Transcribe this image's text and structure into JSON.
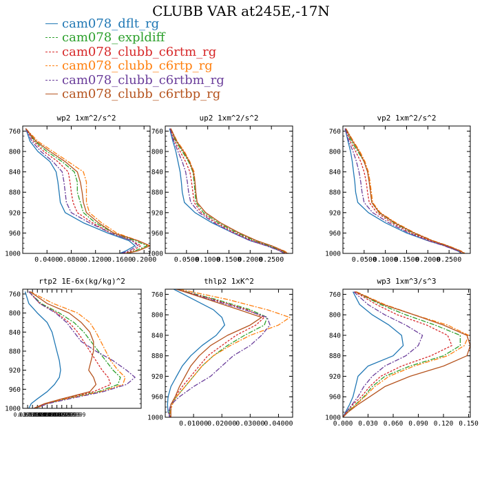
{
  "figure": {
    "title": "CLUBB VAR at245E,-17N"
  },
  "legend": [
    {
      "name": "cam078_dflt_rg",
      "color": "#1f77b4",
      "dash": ""
    },
    {
      "name": "cam078_expldiff",
      "color": "#2ca02c",
      "dash": "7 2 2 2"
    },
    {
      "name": "cam078_clubb_c6rtm_rg",
      "color": "#d62728",
      "dash": "3 2"
    },
    {
      "name": "cam078_clubb_c6rtp_rg",
      "color": "#ff7f0e",
      "dash": "7 2 2 2"
    },
    {
      "name": "cam078_clubb_c6rtbm_rg",
      "color": "#6a3d9a",
      "dash": "7 2 2 2"
    },
    {
      "name": "cam078_clubb_c6rtbp_rg",
      "color": "#b5531e",
      "dash": ""
    }
  ],
  "chart_data": [
    {
      "type": "line",
      "title": "wp2   1xm^2/s^2",
      "xlim": [
        0.0,
        0.21
      ],
      "ylim": [
        1000,
        750
      ],
      "xticks": [
        "0.0400",
        "0.0800",
        "0.1200",
        "0.1600",
        "0.2000"
      ],
      "yticks": [
        "760",
        "800",
        "840",
        "880",
        "920",
        "960",
        "1000"
      ],
      "y": [
        755,
        780,
        800,
        820,
        840,
        860,
        880,
        900,
        920,
        940,
        960,
        975,
        985,
        995,
        1000
      ],
      "series": [
        {
          "name": "cam078_dflt_rg",
          "x": [
            0.005,
            0.012,
            0.025,
            0.045,
            0.055,
            0.058,
            0.06,
            0.062,
            0.07,
            0.1,
            0.14,
            0.175,
            0.185,
            0.17,
            0.16
          ]
        },
        {
          "name": "cam078_expldiff",
          "x": [
            0.005,
            0.02,
            0.04,
            0.065,
            0.085,
            0.09,
            0.09,
            0.095,
            0.1,
            0.12,
            0.15,
            0.185,
            0.205,
            0.185,
            0.17
          ]
        },
        {
          "name": "cam078_clubb_c6rtm_rg",
          "x": [
            0.005,
            0.018,
            0.035,
            0.058,
            0.075,
            0.078,
            0.08,
            0.083,
            0.09,
            0.115,
            0.145,
            0.18,
            0.195,
            0.18,
            0.165
          ]
        },
        {
          "name": "cam078_clubb_c6rtp_rg",
          "x": [
            0.005,
            0.025,
            0.05,
            0.075,
            0.1,
            0.105,
            0.105,
            0.105,
            0.11,
            0.13,
            0.155,
            0.19,
            0.208,
            0.19,
            0.17
          ]
        },
        {
          "name": "cam078_clubb_c6rtbm_rg",
          "x": [
            0.005,
            0.015,
            0.03,
            0.05,
            0.065,
            0.068,
            0.07,
            0.072,
            0.08,
            0.11,
            0.145,
            0.18,
            0.19,
            0.175,
            0.162
          ]
        },
        {
          "name": "cam078_clubb_c6rtbp_rg",
          "x": [
            0.005,
            0.022,
            0.045,
            0.07,
            0.09,
            0.095,
            0.098,
            0.1,
            0.105,
            0.125,
            0.15,
            0.19,
            0.21,
            0.19,
            0.172
          ]
        }
      ]
    },
    {
      "type": "line",
      "title": "up2   1xm^2/s^2",
      "xlim": [
        0.0,
        0.3
      ],
      "ylim": [
        1000,
        750
      ],
      "xticks": [
        "0.0500",
        "0.1000",
        "0.1500",
        "0.2000",
        "0.2500"
      ],
      "yticks": [
        "760",
        "800",
        "840",
        "880",
        "920",
        "960",
        "1000"
      ],
      "y": [
        755,
        780,
        800,
        820,
        840,
        860,
        880,
        900,
        920,
        940,
        960,
        975,
        985,
        995,
        1000
      ],
      "series": [
        {
          "name": "cam078_dflt_rg",
          "x": [
            0.01,
            0.018,
            0.025,
            0.03,
            0.035,
            0.038,
            0.04,
            0.045,
            0.07,
            0.11,
            0.16,
            0.2,
            0.24,
            0.27,
            0.28
          ]
        },
        {
          "name": "cam078_expldiff",
          "x": [
            0.012,
            0.025,
            0.04,
            0.055,
            0.065,
            0.068,
            0.07,
            0.072,
            0.09,
            0.125,
            0.17,
            0.21,
            0.245,
            0.275,
            0.285
          ]
        },
        {
          "name": "cam078_clubb_c6rtm_rg",
          "x": [
            0.012,
            0.022,
            0.035,
            0.048,
            0.058,
            0.062,
            0.065,
            0.068,
            0.085,
            0.12,
            0.165,
            0.205,
            0.24,
            0.272,
            0.283
          ]
        },
        {
          "name": "cam078_clubb_c6rtp_rg",
          "x": [
            0.013,
            0.028,
            0.045,
            0.058,
            0.068,
            0.07,
            0.072,
            0.075,
            0.095,
            0.13,
            0.175,
            0.215,
            0.25,
            0.28,
            0.29
          ]
        },
        {
          "name": "cam078_clubb_c6rtbm_rg",
          "x": [
            0.011,
            0.02,
            0.03,
            0.04,
            0.048,
            0.052,
            0.055,
            0.06,
            0.08,
            0.115,
            0.16,
            0.2,
            0.238,
            0.27,
            0.28
          ]
        },
        {
          "name": "cam078_clubb_c6rtbp_rg",
          "x": [
            0.013,
            0.027,
            0.043,
            0.057,
            0.066,
            0.07,
            0.072,
            0.075,
            0.095,
            0.13,
            0.175,
            0.215,
            0.25,
            0.278,
            0.288
          ]
        }
      ]
    },
    {
      "type": "line",
      "title": "vp2   1xm^2/s^2",
      "xlim": [
        0.0,
        0.3
      ],
      "ylim": [
        1000,
        750
      ],
      "xticks": [
        "0.0500",
        "0.1000",
        "0.1500",
        "0.2000",
        "0.2500"
      ],
      "yticks": [
        "760",
        "800",
        "840",
        "880",
        "920",
        "960",
        "1000"
      ],
      "y": [
        755,
        780,
        800,
        820,
        840,
        860,
        880,
        900,
        920,
        940,
        960,
        975,
        985,
        995,
        1000
      ],
      "series": [
        {
          "name": "cam078_dflt_rg",
          "x": [
            0.005,
            0.012,
            0.018,
            0.022,
            0.025,
            0.028,
            0.03,
            0.035,
            0.06,
            0.1,
            0.15,
            0.2,
            0.24,
            0.27,
            0.28
          ]
        },
        {
          "name": "cam078_expldiff",
          "x": [
            0.006,
            0.02,
            0.035,
            0.05,
            0.058,
            0.062,
            0.065,
            0.068,
            0.085,
            0.12,
            0.165,
            0.21,
            0.245,
            0.275,
            0.285
          ]
        },
        {
          "name": "cam078_clubb_c6rtm_rg",
          "x": [
            0.006,
            0.017,
            0.03,
            0.042,
            0.05,
            0.055,
            0.058,
            0.062,
            0.08,
            0.115,
            0.16,
            0.205,
            0.24,
            0.272,
            0.282
          ]
        },
        {
          "name": "cam078_clubb_c6rtp_rg",
          "x": [
            0.007,
            0.025,
            0.04,
            0.052,
            0.06,
            0.064,
            0.067,
            0.07,
            0.088,
            0.125,
            0.17,
            0.212,
            0.248,
            0.278,
            0.288
          ]
        },
        {
          "name": "cam078_clubb_c6rtbm_rg",
          "x": [
            0.005,
            0.014,
            0.024,
            0.032,
            0.038,
            0.042,
            0.045,
            0.05,
            0.07,
            0.108,
            0.155,
            0.2,
            0.238,
            0.27,
            0.28
          ]
        },
        {
          "name": "cam078_clubb_c6rtbp_rg",
          "x": [
            0.007,
            0.023,
            0.038,
            0.05,
            0.058,
            0.062,
            0.065,
            0.068,
            0.086,
            0.122,
            0.168,
            0.21,
            0.246,
            0.276,
            0.286
          ]
        }
      ]
    },
    {
      "type": "line",
      "title": "rtp2   1E-6x(kg/kg)^2",
      "xlim": [
        0.0,
        0.97
      ],
      "ylim": [
        1000,
        750
      ],
      "xticks": [
        "0.0399999",
        "0.0799999",
        "0.1200000",
        "0.1600000",
        "0.2000000",
        "0.2399999",
        "0.2799999",
        "0.3199999",
        "0.3599999",
        "0.3999999"
      ],
      "yticks": [
        "760",
        "800",
        "840",
        "880",
        "920",
        "960",
        "1000"
      ],
      "y": [
        755,
        780,
        800,
        820,
        840,
        860,
        880,
        900,
        920,
        935,
        950,
        965,
        980,
        990,
        1000
      ],
      "series": [
        {
          "name": "cam078_dflt_rg",
          "x": [
            0.02,
            0.05,
            0.12,
            0.2,
            0.24,
            0.26,
            0.28,
            0.3,
            0.31,
            0.3,
            0.26,
            0.2,
            0.12,
            0.07,
            0.05
          ]
        },
        {
          "name": "cam078_expldiff",
          "x": [
            0.05,
            0.15,
            0.3,
            0.42,
            0.5,
            0.56,
            0.62,
            0.68,
            0.74,
            0.8,
            0.78,
            0.62,
            0.35,
            0.2,
            0.1
          ]
        },
        {
          "name": "cam078_clubb_c6rtm_rg",
          "x": [
            0.05,
            0.14,
            0.28,
            0.38,
            0.45,
            0.5,
            0.55,
            0.6,
            0.65,
            0.7,
            0.72,
            0.58,
            0.33,
            0.19,
            0.09
          ]
        },
        {
          "name": "cam078_clubb_c6rtp_rg",
          "x": [
            0.06,
            0.25,
            0.45,
            0.55,
            0.6,
            0.64,
            0.68,
            0.72,
            0.78,
            0.84,
            0.82,
            0.64,
            0.36,
            0.2,
            0.11
          ]
        },
        {
          "name": "cam078_clubb_c6rtbm_rg",
          "x": [
            0.05,
            0.14,
            0.27,
            0.36,
            0.42,
            0.48,
            0.6,
            0.74,
            0.85,
            0.92,
            0.85,
            0.66,
            0.38,
            0.21,
            0.1
          ]
        },
        {
          "name": "cam078_clubb_c6rtbp_rg",
          "x": [
            0.06,
            0.2,
            0.38,
            0.48,
            0.55,
            0.58,
            0.58,
            0.56,
            0.54,
            0.58,
            0.6,
            0.55,
            0.32,
            0.18,
            0.09
          ]
        }
      ]
    },
    {
      "type": "line",
      "title": "thlp2   1xK^2",
      "xlim": [
        0.0,
        0.045
      ],
      "ylim": [
        1000,
        750
      ],
      "xticks": [
        "0.01000",
        "0.02000",
        "0.03000",
        "0.04000"
      ],
      "yticks": [
        "760",
        "800",
        "840",
        "880",
        "920",
        "960",
        "1000"
      ],
      "y": [
        750,
        770,
        790,
        805,
        820,
        840,
        860,
        880,
        900,
        920,
        940,
        960,
        975,
        990,
        1000
      ],
      "series": [
        {
          "name": "cam078_dflt_rg",
          "x": [
            0.003,
            0.01,
            0.017,
            0.02,
            0.021,
            0.018,
            0.013,
            0.009,
            0.006,
            0.004,
            0.002,
            0.001,
            0.0008,
            0.001,
            0.002
          ]
        },
        {
          "name": "cam078_expldiff",
          "x": [
            0.004,
            0.018,
            0.03,
            0.036,
            0.035,
            0.028,
            0.022,
            0.017,
            0.013,
            0.01,
            0.007,
            0.004,
            0.002,
            0.0015,
            0.002
          ]
        },
        {
          "name": "cam078_clubb_c6rtm_rg",
          "x": [
            0.004,
            0.017,
            0.029,
            0.035,
            0.032,
            0.025,
            0.02,
            0.015,
            0.012,
            0.009,
            0.006,
            0.0035,
            0.002,
            0.0012,
            0.0018
          ]
        },
        {
          "name": "cam078_clubb_c6rtp_rg",
          "x": [
            0.005,
            0.022,
            0.036,
            0.044,
            0.04,
            0.03,
            0.023,
            0.017,
            0.013,
            0.01,
            0.007,
            0.004,
            0.0025,
            0.0018,
            0.002
          ]
        },
        {
          "name": "cam078_clubb_c6rtbm_rg",
          "x": [
            0.004,
            0.016,
            0.028,
            0.036,
            0.037,
            0.034,
            0.03,
            0.024,
            0.02,
            0.016,
            0.01,
            0.005,
            0.002,
            0.0012,
            0.0015
          ]
        },
        {
          "name": "cam078_clubb_c6rtbp_rg",
          "x": [
            0.004,
            0.015,
            0.026,
            0.034,
            0.03,
            0.022,
            0.016,
            0.012,
            0.009,
            0.007,
            0.005,
            0.0035,
            0.002,
            0.002,
            0.002
          ]
        }
      ]
    },
    {
      "type": "line",
      "title": "wp3   1xm^3/s^3",
      "xlim": [
        0.0,
        0.152
      ],
      "ylim": [
        1000,
        750
      ],
      "xticks": [
        "0.000",
        "0.030",
        "0.060",
        "0.090",
        "0.120",
        "0.150"
      ],
      "yticks": [
        "760",
        "800",
        "840",
        "880",
        "920",
        "960",
        "1000"
      ],
      "y": [
        755,
        780,
        800,
        820,
        840,
        860,
        880,
        900,
        920,
        940,
        960,
        975,
        990,
        1000
      ],
      "series": [
        {
          "name": "cam078_dflt_rg",
          "x": [
            0.012,
            0.02,
            0.035,
            0.055,
            0.07,
            0.072,
            0.06,
            0.03,
            0.018,
            0.015,
            0.012,
            0.008,
            0.003,
            0.0
          ]
        },
        {
          "name": "cam078_expldiff",
          "x": [
            0.015,
            0.045,
            0.075,
            0.11,
            0.14,
            0.14,
            0.12,
            0.08,
            0.05,
            0.035,
            0.025,
            0.015,
            0.005,
            0.0
          ]
        },
        {
          "name": "cam078_clubb_c6rtm_rg",
          "x": [
            0.014,
            0.04,
            0.065,
            0.1,
            0.125,
            0.13,
            0.105,
            0.07,
            0.045,
            0.032,
            0.022,
            0.012,
            0.004,
            0.0
          ]
        },
        {
          "name": "cam078_clubb_c6rtp_rg",
          "x": [
            0.016,
            0.05,
            0.085,
            0.125,
            0.15,
            0.145,
            0.125,
            0.085,
            0.055,
            0.038,
            0.026,
            0.016,
            0.006,
            0.0
          ]
        },
        {
          "name": "cam078_clubb_c6rtbm_rg",
          "x": [
            0.013,
            0.03,
            0.05,
            0.075,
            0.095,
            0.09,
            0.075,
            0.05,
            0.035,
            0.025,
            0.018,
            0.011,
            0.004,
            0.0
          ]
        },
        {
          "name": "cam078_clubb_c6rtbp_rg",
          "x": [
            0.015,
            0.048,
            0.085,
            0.12,
            0.148,
            0.152,
            0.148,
            0.12,
            0.08,
            0.05,
            0.032,
            0.018,
            0.006,
            0.0
          ]
        }
      ]
    }
  ]
}
